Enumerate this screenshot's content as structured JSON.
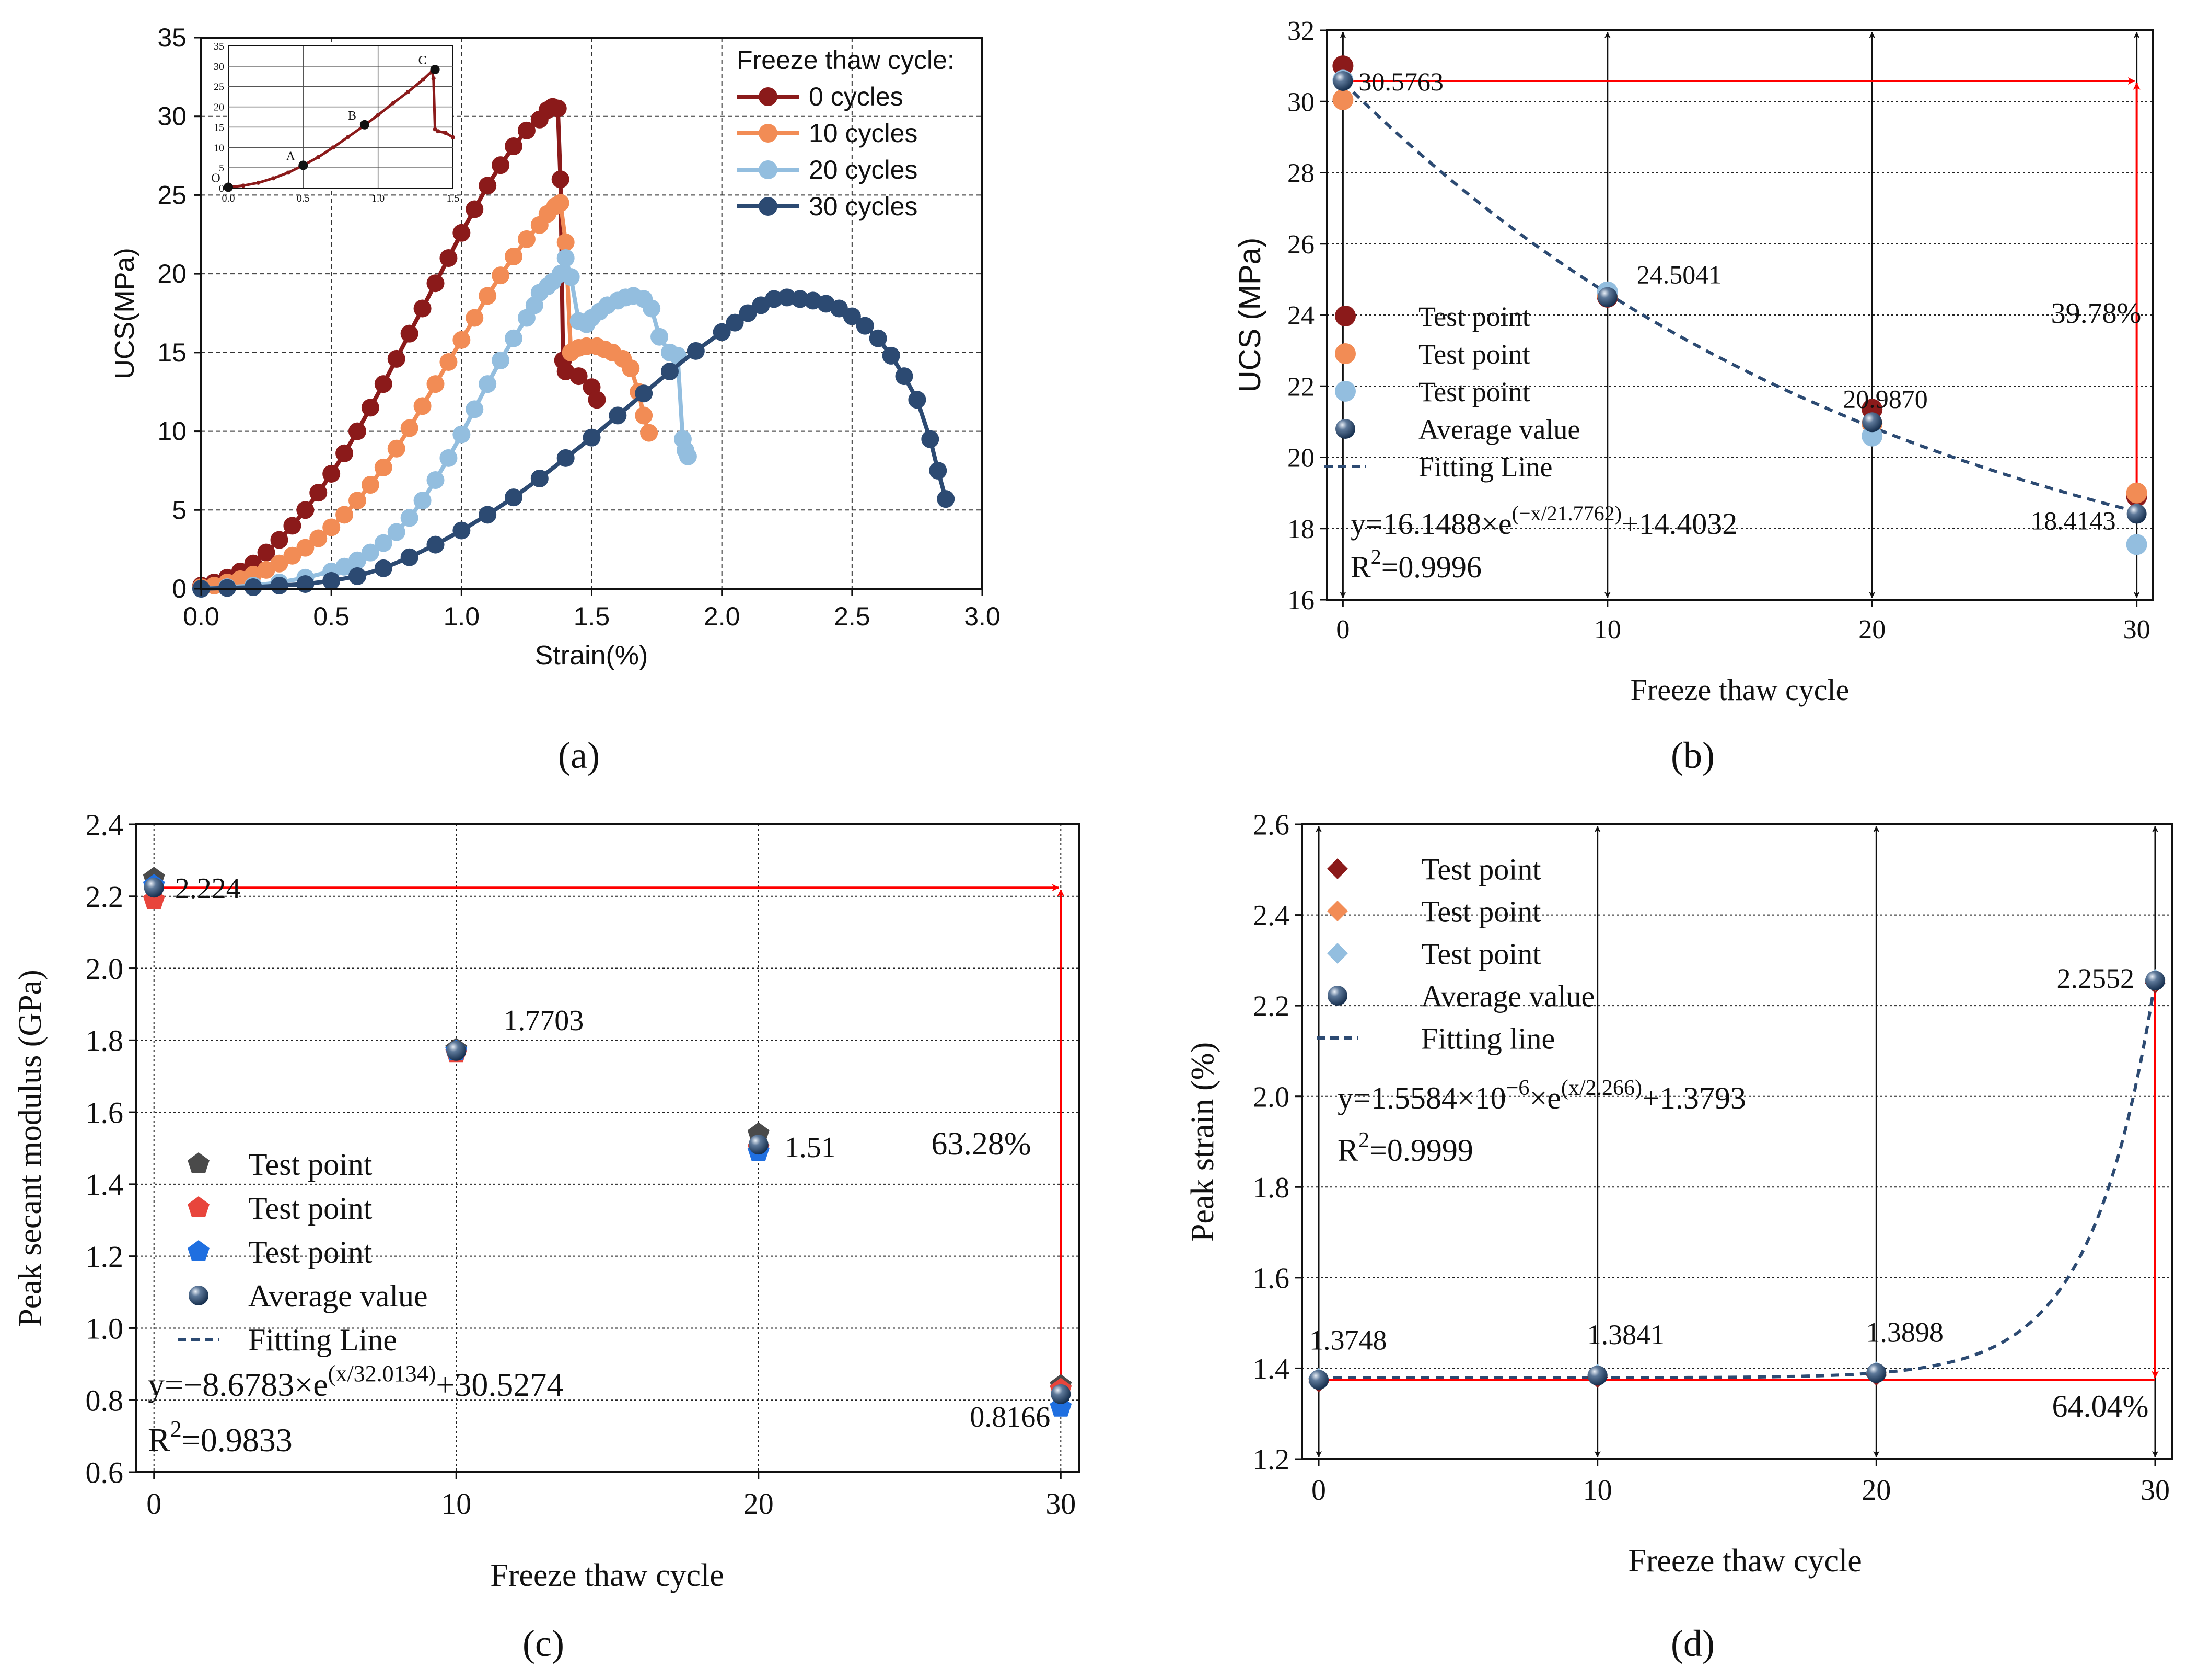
{
  "colors": {
    "dark_red": "#8b1a1a",
    "orange": "#f28c55",
    "light_blue": "#93bedf",
    "navy": "#2c4a72",
    "red": "#ff0000",
    "gray": "#4a4a4a",
    "red_pent": "#e8453c",
    "blue_pent": "#1f6fe0",
    "black": "#111111"
  },
  "chart_data": [
    {
      "id": "a",
      "panel_label": "(a)",
      "type": "line",
      "xlabel": "Strain(%)",
      "ylabel": "UCS(MPa)",
      "xlim": [
        0,
        3.0
      ],
      "ylim": [
        0,
        35
      ],
      "x_ticks": [
        "0.0",
        "0.5",
        "1.0",
        "1.5",
        "2.0",
        "2.5",
        "3.0"
      ],
      "y_ticks": [
        "0",
        "5",
        "10",
        "15",
        "20",
        "25",
        "30",
        "35"
      ],
      "grid": true,
      "legend_title": "Freeze thaw cycle:",
      "legend_position": "top-right",
      "series": [
        {
          "name": "0 cycles",
          "color": "dark_red",
          "x": [
            0.0,
            0.05,
            0.1,
            0.15,
            0.2,
            0.25,
            0.3,
            0.35,
            0.4,
            0.45,
            0.5,
            0.55,
            0.6,
            0.65,
            0.7,
            0.75,
            0.8,
            0.85,
            0.9,
            0.95,
            1.0,
            1.05,
            1.1,
            1.15,
            1.2,
            1.25,
            1.3,
            1.33,
            1.35,
            1.37,
            1.38,
            1.39,
            1.4,
            1.45,
            1.5,
            1.52
          ],
          "y": [
            0.2,
            0.4,
            0.7,
            1.1,
            1.6,
            2.3,
            3.1,
            4.0,
            5.0,
            6.1,
            7.3,
            8.6,
            10.0,
            11.5,
            13.0,
            14.6,
            16.2,
            17.8,
            19.4,
            21.0,
            22.6,
            24.1,
            25.6,
            26.9,
            28.1,
            29.1,
            29.8,
            30.4,
            30.6,
            30.5,
            26.0,
            14.5,
            13.8,
            13.5,
            12.8,
            12.0
          ]
        },
        {
          "name": "10 cycles",
          "color": "orange",
          "x": [
            0.0,
            0.05,
            0.1,
            0.15,
            0.2,
            0.25,
            0.3,
            0.35,
            0.4,
            0.45,
            0.5,
            0.55,
            0.6,
            0.65,
            0.7,
            0.75,
            0.8,
            0.85,
            0.9,
            0.95,
            1.0,
            1.05,
            1.1,
            1.15,
            1.2,
            1.25,
            1.3,
            1.33,
            1.36,
            1.38,
            1.4,
            1.42,
            1.45,
            1.48,
            1.52,
            1.55,
            1.58,
            1.62,
            1.65,
            1.68,
            1.7,
            1.72
          ],
          "y": [
            0.1,
            0.2,
            0.4,
            0.6,
            0.9,
            1.2,
            1.6,
            2.1,
            2.6,
            3.2,
            3.9,
            4.7,
            5.6,
            6.6,
            7.7,
            8.9,
            10.2,
            11.6,
            13.0,
            14.4,
            15.8,
            17.2,
            18.6,
            19.9,
            21.1,
            22.2,
            23.1,
            23.8,
            24.3,
            24.5,
            22.0,
            15.0,
            15.3,
            15.4,
            15.4,
            15.2,
            15.0,
            14.6,
            14.0,
            12.5,
            11.0,
            9.9
          ]
        },
        {
          "name": "20 cycles",
          "color": "light_blue",
          "x": [
            0.0,
            0.1,
            0.2,
            0.3,
            0.4,
            0.5,
            0.55,
            0.6,
            0.65,
            0.7,
            0.75,
            0.8,
            0.85,
            0.9,
            0.95,
            1.0,
            1.05,
            1.1,
            1.15,
            1.2,
            1.25,
            1.28,
            1.3,
            1.33,
            1.35,
            1.38,
            1.4,
            1.42,
            1.45,
            1.48,
            1.5,
            1.53,
            1.56,
            1.6,
            1.63,
            1.66,
            1.7,
            1.73,
            1.76,
            1.8,
            1.83,
            1.85,
            1.86,
            1.87
          ],
          "y": [
            0.0,
            0.1,
            0.2,
            0.4,
            0.7,
            1.1,
            1.4,
            1.8,
            2.3,
            2.9,
            3.6,
            4.5,
            5.6,
            6.9,
            8.3,
            9.8,
            11.4,
            13.0,
            14.5,
            15.9,
            17.2,
            18.0,
            18.8,
            19.2,
            19.5,
            20.0,
            21.0,
            19.8,
            17.0,
            16.8,
            17.2,
            17.6,
            18.0,
            18.3,
            18.5,
            18.6,
            18.4,
            17.8,
            16.0,
            15.0,
            14.8,
            9.5,
            8.8,
            8.4
          ]
        },
        {
          "name": "30 cycles",
          "color": "navy",
          "x": [
            0.0,
            0.1,
            0.2,
            0.3,
            0.4,
            0.5,
            0.6,
            0.7,
            0.8,
            0.9,
            1.0,
            1.1,
            1.2,
            1.3,
            1.4,
            1.5,
            1.6,
            1.7,
            1.8,
            1.9,
            2.0,
            2.05,
            2.1,
            2.15,
            2.2,
            2.25,
            2.3,
            2.35,
            2.4,
            2.45,
            2.5,
            2.55,
            2.6,
            2.65,
            2.7,
            2.75,
            2.8,
            2.83,
            2.86
          ],
          "y": [
            0.0,
            0.05,
            0.1,
            0.2,
            0.3,
            0.5,
            0.8,
            1.3,
            2.0,
            2.8,
            3.7,
            4.7,
            5.8,
            7.0,
            8.3,
            9.6,
            11.0,
            12.4,
            13.8,
            15.1,
            16.3,
            16.9,
            17.5,
            18.0,
            18.4,
            18.5,
            18.4,
            18.3,
            18.1,
            17.8,
            17.3,
            16.7,
            15.9,
            14.8,
            13.5,
            12.0,
            9.5,
            7.5,
            5.7
          ]
        }
      ],
      "inset": {
        "x_ticks": [
          "0.0",
          "0.5",
          "1.0",
          "1.5"
        ],
        "y_ticks": [
          "0",
          "5",
          "10",
          "15",
          "20",
          "25",
          "30",
          "35"
        ],
        "xlim": [
          0,
          1.5
        ],
        "ylim": [
          0,
          35
        ],
        "curve_x": [
          0.0,
          0.1,
          0.2,
          0.3,
          0.4,
          0.5,
          0.6,
          0.7,
          0.8,
          0.9,
          1.0,
          1.1,
          1.2,
          1.3,
          1.36,
          1.37,
          1.38,
          1.4,
          1.45,
          1.5
        ],
        "curve_y": [
          0.2,
          0.6,
          1.3,
          2.4,
          3.8,
          5.6,
          7.6,
          10.0,
          12.6,
          15.2,
          18.0,
          20.9,
          23.7,
          26.7,
          28.8,
          27.0,
          14.5,
          14.0,
          13.6,
          12.5
        ],
        "points": [
          {
            "label": "O",
            "x": 0.0,
            "y": 0.2
          },
          {
            "label": "A",
            "x": 0.5,
            "y": 5.6
          },
          {
            "label": "B",
            "x": 0.91,
            "y": 15.6
          },
          {
            "label": "C",
            "x": 1.38,
            "y": 29.2
          }
        ]
      }
    },
    {
      "id": "b",
      "panel_label": "(b)",
      "type": "scatter",
      "xlabel": "Freeze thaw cycle",
      "ylabel": "UCS (MPa)",
      "xlim": [
        -0.6,
        30.6
      ],
      "ylim": [
        16,
        32
      ],
      "x_ticks": [
        0,
        10,
        20,
        30
      ],
      "y_ticks": [
        16,
        18,
        20,
        22,
        24,
        26,
        28,
        30,
        32
      ],
      "test_points": [
        {
          "name": "Test point",
          "color": "dark_red",
          "x": [
            0,
            10,
            20,
            30
          ],
          "y": [
            31.0,
            24.5,
            21.35,
            18.9
          ]
        },
        {
          "name": "Test point",
          "color": "orange",
          "x": [
            0,
            10,
            20,
            30
          ],
          "y": [
            30.05,
            24.55,
            20.95,
            19.0
          ]
        },
        {
          "name": "Test point",
          "color": "light_blue",
          "x": [
            0,
            10,
            20,
            30
          ],
          "y": [
            30.6,
            24.65,
            20.6,
            17.55
          ]
        }
      ],
      "average": {
        "name": "Average value",
        "x": [
          0,
          10,
          20,
          30
        ],
        "y": [
          30.5763,
          24.5041,
          20.987,
          18.4143
        ]
      },
      "average_labels": [
        "30.5763",
        "24.5041",
        "20.9870",
        "18.4143"
      ],
      "fit": {
        "name": "Fitting Line",
        "a": 16.1488,
        "t": 21.7762,
        "c": 14.4032,
        "sign": -1
      },
      "equation": {
        "prefix": "y=16.1488×e",
        "exponent": "(−x/21.7762)",
        "suffix": "+14.4032"
      },
      "r2": {
        "prefix": "R",
        "sup": "2",
        "value": "=0.9996"
      },
      "percent_label": "39.78%"
    },
    {
      "id": "c",
      "panel_label": "(c)",
      "type": "scatter",
      "xlabel": "Freeze thaw cycle",
      "ylabel": "Peak secant modulus (GPa)",
      "xlim": [
        -0.6,
        30.6
      ],
      "ylim": [
        0.6,
        2.4
      ],
      "x_ticks": [
        0,
        10,
        20,
        30
      ],
      "y_ticks": [
        "0.6",
        "0.8",
        "1.0",
        "1.2",
        "1.4",
        "1.6",
        "1.8",
        "2.0",
        "2.2",
        "2.4"
      ],
      "test_points": [
        {
          "name": "Test point",
          "color": "gray",
          "x": [
            0,
            10,
            20,
            30
          ],
          "y": [
            2.25,
            1.775,
            1.54,
            0.84
          ]
        },
        {
          "name": "Test point",
          "color": "red_pent",
          "x": [
            0,
            10,
            20,
            30
          ],
          "y": [
            2.19,
            1.765,
            1.5,
            0.83
          ]
        },
        {
          "name": "Test point",
          "color": "blue_pent",
          "x": [
            0,
            10,
            20,
            30
          ],
          "y": [
            2.23,
            1.77,
            1.49,
            0.78
          ]
        }
      ],
      "average": {
        "name": "Average value",
        "x": [
          0,
          10,
          20,
          30
        ],
        "y": [
          2.224,
          1.7703,
          1.51,
          0.8166
        ]
      },
      "average_labels": [
        "2.224",
        "1.7703",
        "1.51",
        "0.8166"
      ],
      "fit": {
        "name": "Fitting Line",
        "a": -8.6783,
        "t": 32.0134,
        "c": 30.5274,
        "sign": 1
      },
      "equation": {
        "prefix": "y=−8.6783×e",
        "exponent": "(x/32.0134)",
        "suffix": "+30.5274"
      },
      "r2": {
        "prefix": "R",
        "sup": "2",
        "value": "=0.9833"
      },
      "percent_label": "63.28%"
    },
    {
      "id": "d",
      "panel_label": "(d)",
      "type": "scatter",
      "xlabel": "Freeze thaw cycle",
      "ylabel": "Peak strain (%)",
      "xlim": [
        -0.6,
        30.6
      ],
      "ylim": [
        1.2,
        2.6
      ],
      "x_ticks": [
        0,
        10,
        20,
        30
      ],
      "y_ticks": [
        "1.2",
        "1.4",
        "1.6",
        "1.8",
        "2.0",
        "2.2",
        "2.4",
        "2.6"
      ],
      "test_points": [
        {
          "name": "Test point",
          "color": "dark_red",
          "x": [
            0,
            10,
            20,
            30
          ],
          "y": [
            1.37,
            1.38,
            1.385,
            2.25
          ]
        },
        {
          "name": "Test point",
          "color": "orange",
          "x": [
            0,
            10,
            20,
            30
          ],
          "y": [
            1.375,
            1.385,
            1.39,
            2.255
          ]
        },
        {
          "name": "Test point",
          "color": "light_blue",
          "x": [
            0,
            10,
            20,
            30
          ],
          "y": [
            1.378,
            1.387,
            1.392,
            2.258
          ]
        }
      ],
      "average": {
        "name": "Average value",
        "x": [
          0,
          10,
          20,
          30
        ],
        "y": [
          1.3748,
          1.3841,
          1.3898,
          2.2552
        ]
      },
      "average_labels": [
        "1.3748",
        "1.3841",
        "1.3898",
        "2.2552"
      ],
      "fit": {
        "name": "Fitting line",
        "a": 1.5584e-06,
        "t": 2.266,
        "c": 1.3793,
        "sign": 1
      },
      "equation": {
        "prefix": "y=1.5584×10",
        "exp1": "−6",
        "mid": "×e",
        "exponent": "(x/2.266)",
        "suffix": "+1.3793"
      },
      "r2": {
        "prefix": "R",
        "sup": "2",
        "value": "=0.9999"
      },
      "percent_label": "64.04%"
    }
  ]
}
